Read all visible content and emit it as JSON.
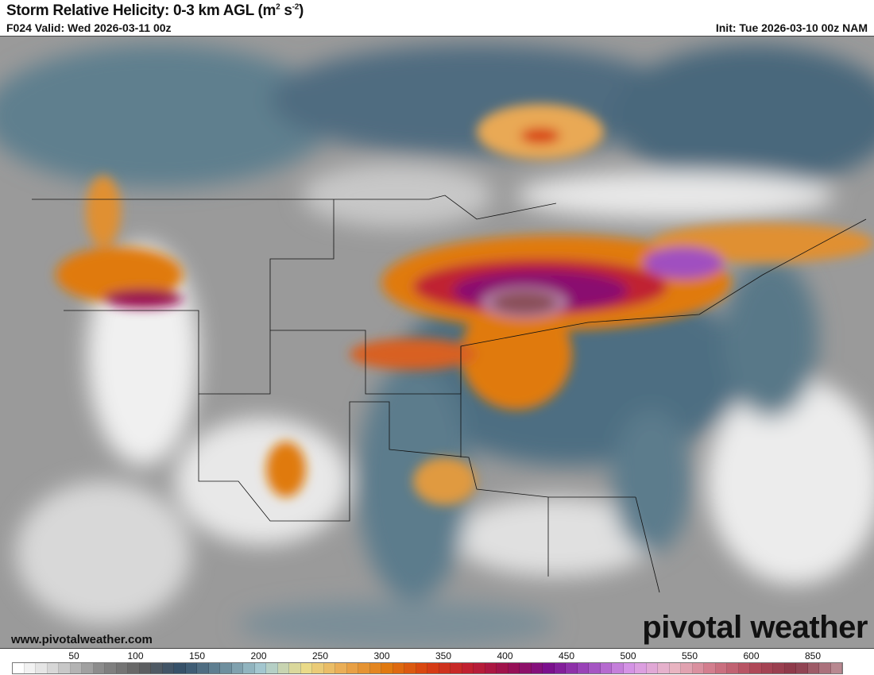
{
  "header": {
    "title": "Storm Relative Helicity: 0-3 km AGL (m",
    "title_sup1": "2",
    "title_mid": " s",
    "title_sup2": "-2",
    "title_end": ")",
    "valid": "F024 Valid: Wed 2026-03-11 00z",
    "init": "Init: Tue 2026-03-10 00z NAM"
  },
  "watermark": {
    "url": "www.pivotalweather.com",
    "logo": "pivotal weather"
  },
  "legend": {
    "ticks": [
      "50",
      "100",
      "150",
      "200",
      "250",
      "300",
      "350",
      "400",
      "450",
      "500",
      "550",
      "600",
      "850"
    ],
    "color_stops": [
      "#ffffff",
      "#d0d0d0",
      "#8a8a8a",
      "#606060",
      "#33506a",
      "#6a8a9a",
      "#a8ccd4",
      "#eadc8a",
      "#eaa850",
      "#e07a10",
      "#d84010",
      "#c02030",
      "#9a1050",
      "#7a1090",
      "#a050c0",
      "#d898e8",
      "#eab8c4",
      "#d07888",
      "#b04858",
      "#8a3848",
      "#b88890"
    ]
  }
}
